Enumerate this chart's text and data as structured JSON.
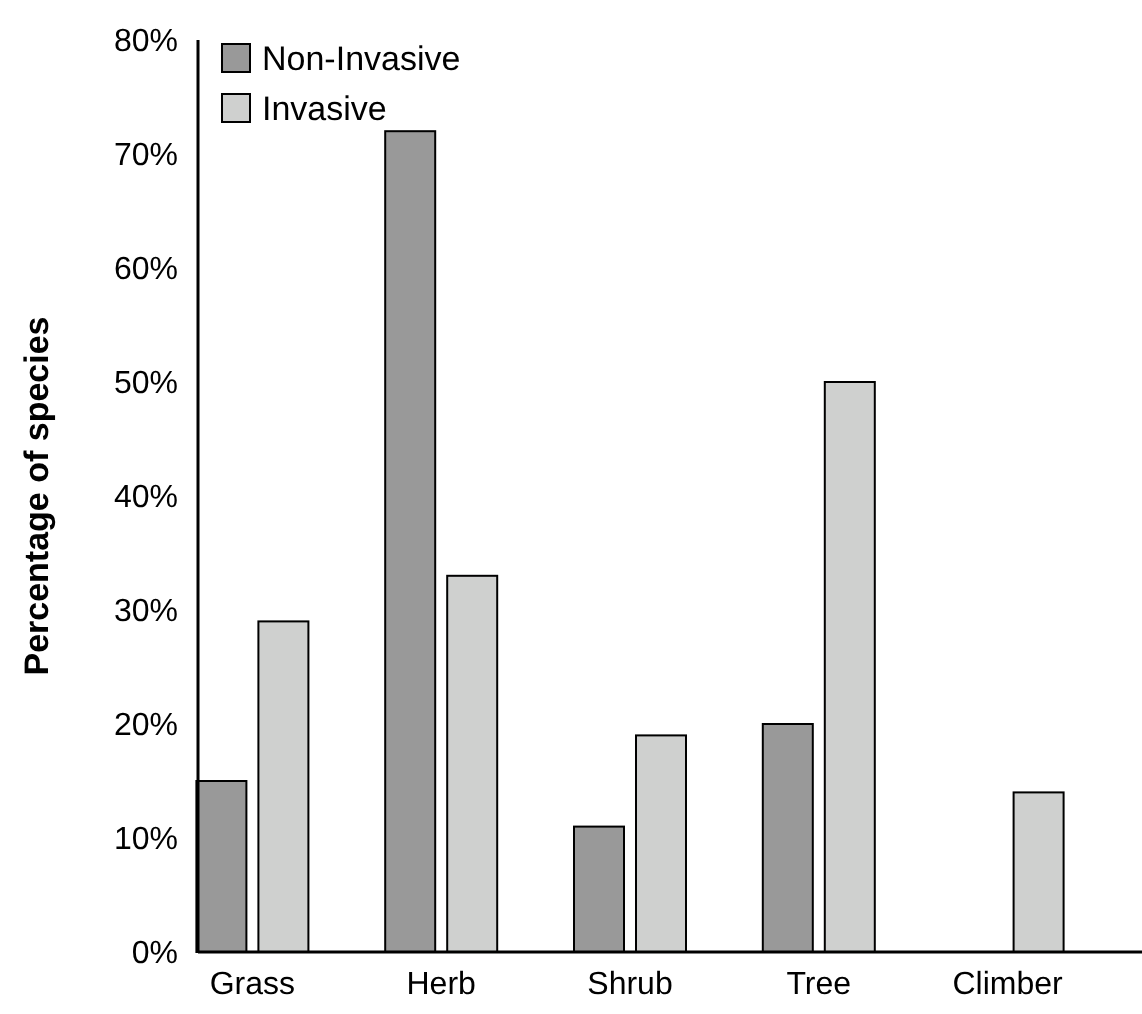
{
  "chart_data": {
    "type": "bar",
    "ylabel": "Percentage of species",
    "categories": [
      "Grass",
      "Herb",
      "Shrub",
      "Tree",
      "Climber"
    ],
    "series": [
      {
        "name": "Non-Invasive",
        "color": "#999999",
        "values": [
          15,
          72,
          11,
          20,
          0
        ]
      },
      {
        "name": "Invasive",
        "color": "#cfd0cf",
        "values": [
          29,
          33,
          19,
          50,
          14
        ]
      }
    ],
    "ylim": [
      0,
      80
    ],
    "yticks": [
      {
        "value": 0,
        "label": "0%"
      },
      {
        "value": 10,
        "label": "10%"
      },
      {
        "value": 20,
        "label": "20%"
      },
      {
        "value": 30,
        "label": "30%"
      },
      {
        "value": 40,
        "label": "40%"
      },
      {
        "value": 50,
        "label": "50%"
      },
      {
        "value": 60,
        "label": "60%"
      },
      {
        "value": 70,
        "label": "70%"
      },
      {
        "value": 80,
        "label": "80%"
      }
    ],
    "grid": false,
    "legend": "top left"
  }
}
